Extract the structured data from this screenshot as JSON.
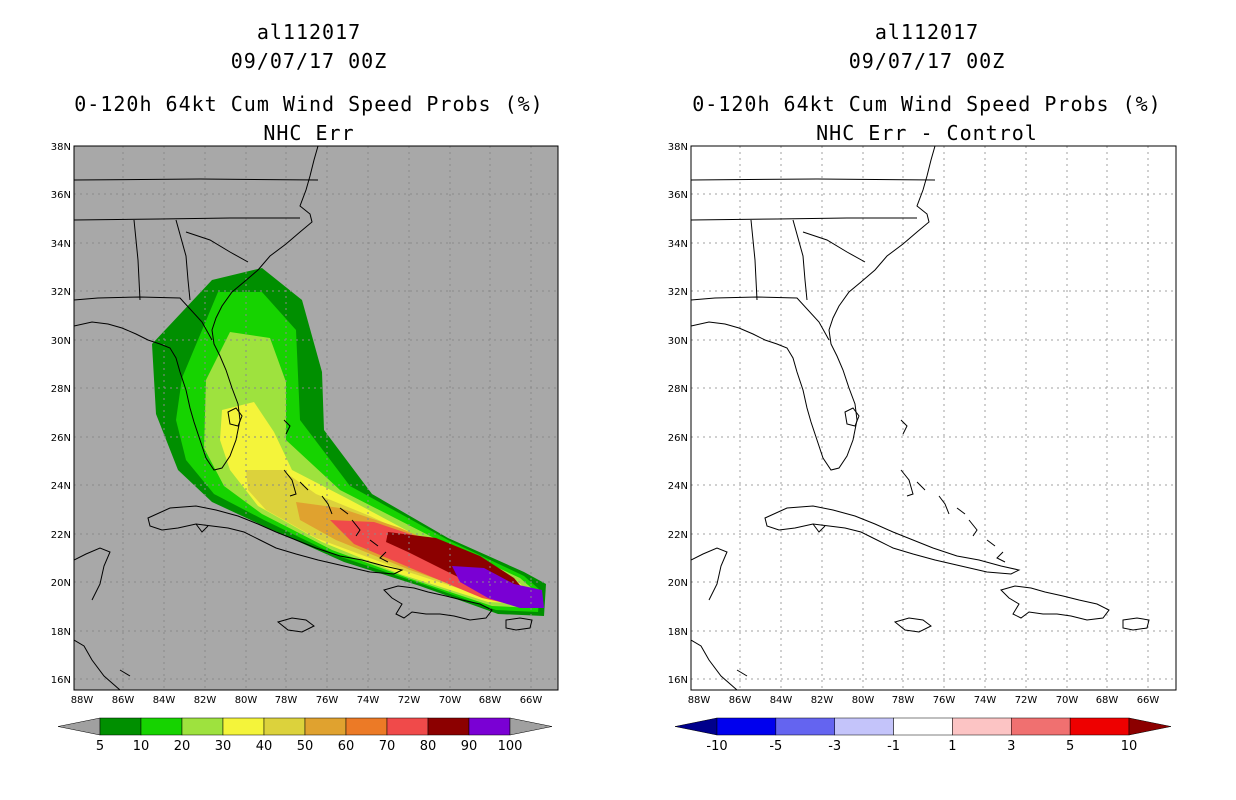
{
  "panels": [
    {
      "storm_id": "al112017",
      "datetime": "09/07/17 00Z",
      "product": "0-120h 64kt Cum Wind Speed Probs (%)",
      "subtitle": "NHC Err",
      "colorbar": {
        "labels": [
          "5",
          "10",
          "20",
          "30",
          "40",
          "50",
          "60",
          "70",
          "80",
          "90",
          "100"
        ],
        "colors": [
          "#a0a0a0",
          "#008f00",
          "#16d300",
          "#9ee23e",
          "#f4f43a",
          "#dcd23c",
          "#e0a22f",
          "#ec7a26",
          "#f04a4a",
          "#8c0000",
          "#7a00d4",
          "#a0a0a0"
        ]
      }
    },
    {
      "storm_id": "al112017",
      "datetime": "09/07/17 00Z",
      "product": "0-120h 64kt Cum Wind Speed Probs (%)",
      "subtitle": "NHC Err - Control",
      "colorbar": {
        "labels": [
          "-10",
          "-5",
          "-3",
          "-1",
          "1",
          "3",
          "5",
          "10"
        ],
        "colors": [
          "#00008c",
          "#0000ee",
          "#6464f0",
          "#c4c4fa",
          "#ffffff",
          "#fcc4c4",
          "#f07070",
          "#ee0000",
          "#8c0000"
        ]
      }
    }
  ],
  "lat_labels": [
    "38N",
    "36N",
    "34N",
    "32N",
    "30N",
    "28N",
    "26N",
    "24N",
    "22N",
    "20N",
    "18N",
    "16N"
  ],
  "lon_labels": [
    "88W",
    "86W",
    "84W",
    "82W",
    "80W",
    "78W",
    "76W",
    "74W",
    "72W",
    "70W",
    "68W",
    "66W"
  ],
  "map_colors": {
    "background_left": "#a8a8a8",
    "coast": "#000000",
    "grid": "#8a8a8a"
  }
}
